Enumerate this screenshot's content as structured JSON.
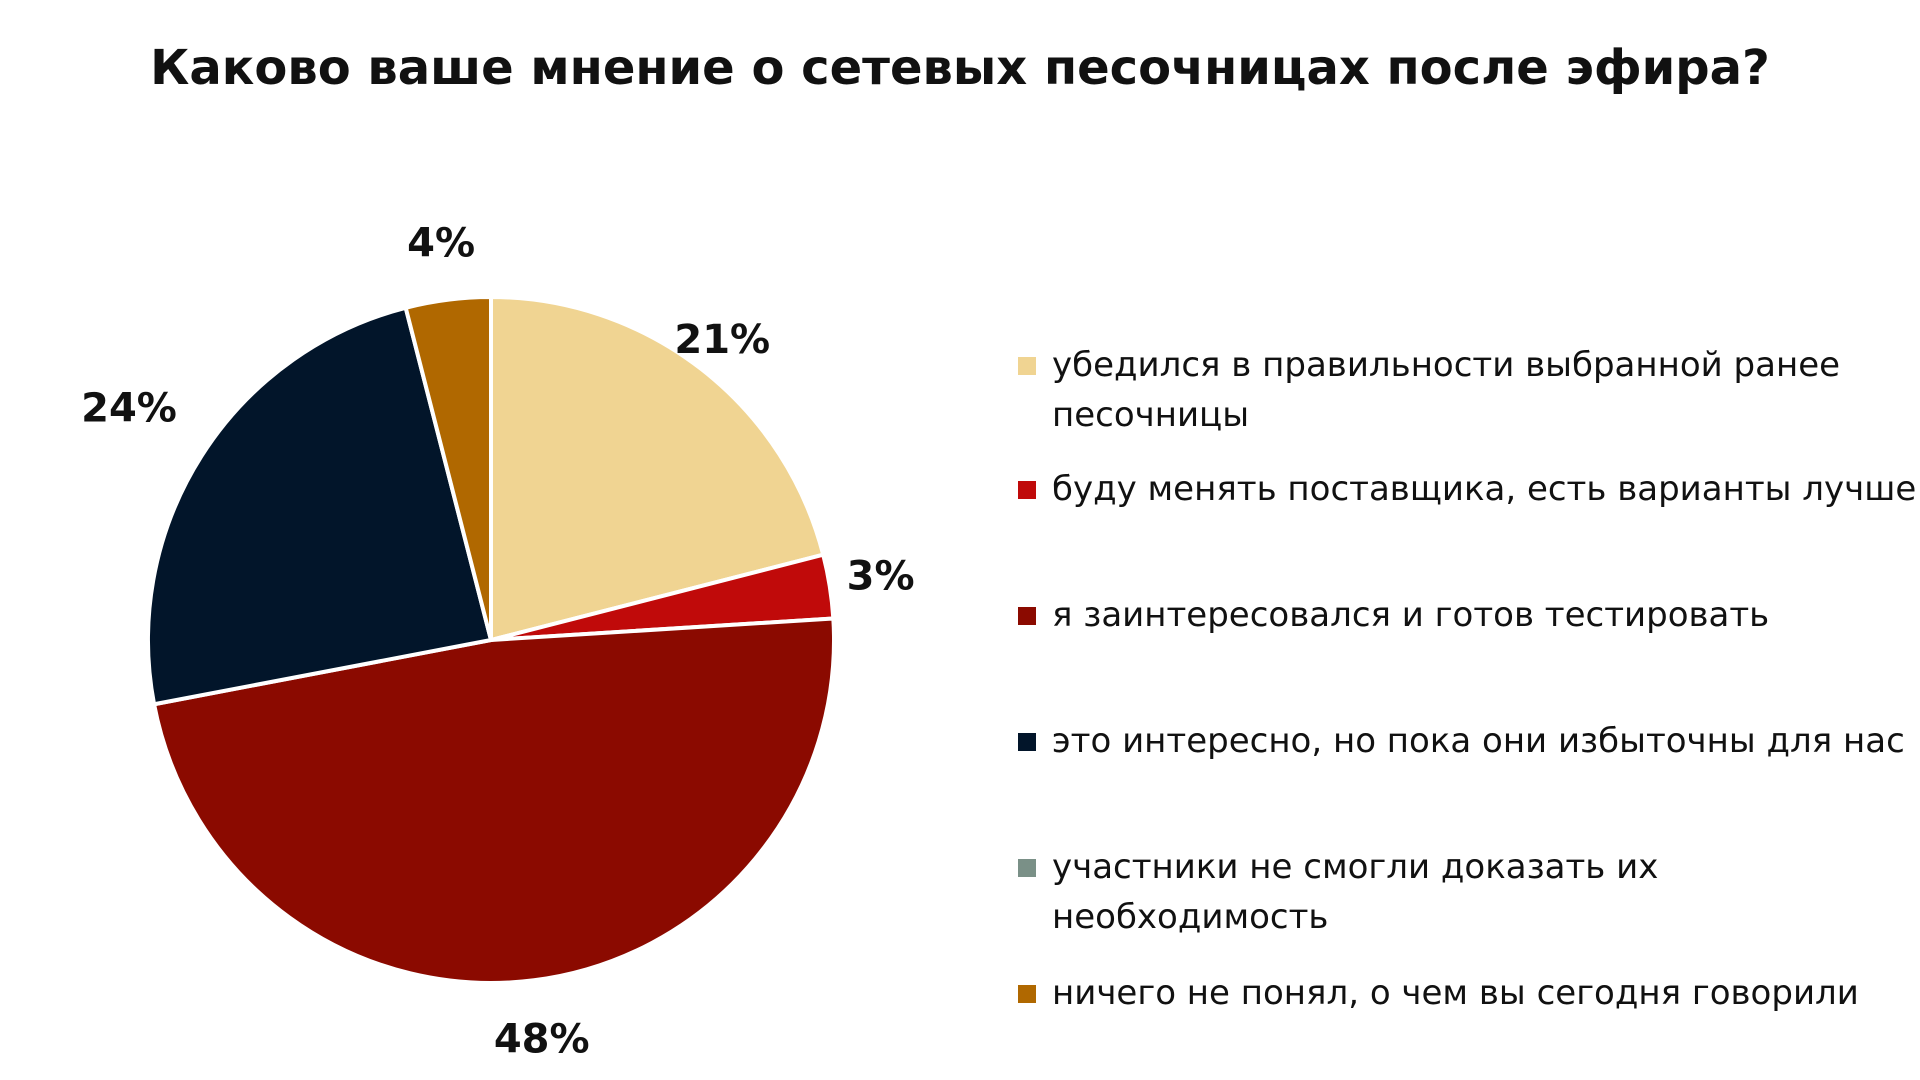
{
  "chart_data": {
    "type": "pie",
    "title": "Каково ваше мнение о сетевых песочницах после эфира?",
    "slices": [
      {
        "label": "убедился в правильности выбранной ранее песочницы",
        "value": 21,
        "value_label": "21%",
        "color": "#f0d492"
      },
      {
        "label": "буду менять поставщика, есть варианты лучше",
        "value": 3,
        "value_label": "3%",
        "color": "#c00a0a"
      },
      {
        "label": "я заинтересовался и готов тестировать",
        "value": 48,
        "value_label": "48%",
        "color": "#8b0a00"
      },
      {
        "label": "это интересно, но пока они избыточны для нас",
        "value": 24,
        "value_label": "24%",
        "color": "#02152a"
      },
      {
        "label": "участники не смогли доказать их необходимость",
        "value": 0,
        "value_label": "",
        "color": "#7a9087"
      },
      {
        "label": "ничего не понял, о чем вы сегодня говорили",
        "value": 4,
        "value_label": "4%",
        "color": "#b06800"
      }
    ],
    "legend_position": "right",
    "start_angle": "12 o'clock",
    "direction": "clockwise"
  }
}
